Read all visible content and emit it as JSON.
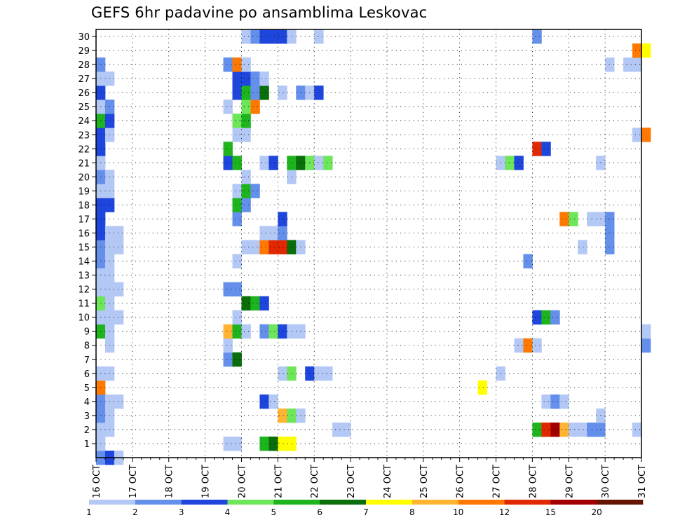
{
  "chart_data": {
    "type": "heatmap",
    "title": "GEFS 6hr padavine po ansamblima Leskovac",
    "xlabel": "",
    "ylabel": "",
    "x_ticks": [
      "16 OCT",
      "17 OCT",
      "18 OCT",
      "19 OCT",
      "20 OCT",
      "21 OCT",
      "22 OCT",
      "23 OCT",
      "24 OCT",
      "25 OCT",
      "26 OCT",
      "27 OCT",
      "28 OCT",
      "29 OCT",
      "30 OCT",
      "31 OCT"
    ],
    "xlim": [
      "16 OCT 00Z",
      "31 OCT 00Z"
    ],
    "time_step_hours": 6,
    "y_ticks": [
      1,
      2,
      3,
      4,
      5,
      6,
      7,
      8,
      9,
      10,
      11,
      12,
      13,
      14,
      15,
      16,
      17,
      18,
      19,
      20,
      21,
      22,
      23,
      24,
      25,
      26,
      27,
      28,
      29,
      30
    ],
    "ylim": [
      0,
      30
    ],
    "grid": true,
    "colorbar": {
      "position": "bottom",
      "labels": [
        "1",
        "2",
        "3",
        "4",
        "5",
        "6",
        "7",
        "8",
        "10",
        "12",
        "15",
        "20"
      ],
      "colors": [
        "#b4c8f5",
        "#6490eb",
        "#1e46dc",
        "#6ee65a",
        "#1eb41e",
        "#0a6e0a",
        "#ffff00",
        "#ffb432",
        "#ff7800",
        "#e12800",
        "#a00000",
        "#641400"
      ]
    },
    "cells_note": "each cell: [ensemble_member, time_step_index (0 = 16 OCT 00Z, 6h steps), precip_class_index into colorbar.colors]",
    "cells": [
      [
        0,
        0,
        1
      ],
      [
        0,
        1,
        2
      ],
      [
        0,
        2,
        0
      ],
      [
        1,
        0,
        0
      ],
      [
        1,
        14,
        0
      ],
      [
        1,
        15,
        0
      ],
      [
        1,
        18,
        4
      ],
      [
        1,
        19,
        5
      ],
      [
        1,
        20,
        6
      ],
      [
        1,
        21,
        6
      ],
      [
        2,
        0,
        0
      ],
      [
        2,
        1,
        0
      ],
      [
        2,
        26,
        0
      ],
      [
        2,
        27,
        0
      ],
      [
        2,
        48,
        4
      ],
      [
        2,
        49,
        9
      ],
      [
        2,
        50,
        10
      ],
      [
        2,
        51,
        7
      ],
      [
        2,
        52,
        0
      ],
      [
        2,
        53,
        0
      ],
      [
        2,
        54,
        1
      ],
      [
        2,
        55,
        1
      ],
      [
        2,
        59,
        0
      ],
      [
        3,
        0,
        1
      ],
      [
        3,
        1,
        0
      ],
      [
        3,
        20,
        7
      ],
      [
        3,
        21,
        3
      ],
      [
        3,
        22,
        0
      ],
      [
        3,
        55,
        0
      ],
      [
        4,
        0,
        1
      ],
      [
        4,
        1,
        0
      ],
      [
        4,
        2,
        0
      ],
      [
        4,
        18,
        2
      ],
      [
        4,
        19,
        0
      ],
      [
        4,
        49,
        0
      ],
      [
        4,
        50,
        1
      ],
      [
        4,
        51,
        0
      ],
      [
        5,
        0,
        8
      ],
      [
        5,
        42,
        6
      ],
      [
        6,
        0,
        0
      ],
      [
        6,
        1,
        0
      ],
      [
        6,
        20,
        0
      ],
      [
        6,
        21,
        3
      ],
      [
        6,
        23,
        2
      ],
      [
        6,
        24,
        0
      ],
      [
        6,
        25,
        0
      ],
      [
        6,
        44,
        0
      ],
      [
        7,
        14,
        1
      ],
      [
        7,
        15,
        5
      ],
      [
        8,
        1,
        0
      ],
      [
        8,
        14,
        0
      ],
      [
        8,
        46,
        0
      ],
      [
        8,
        47,
        8
      ],
      [
        8,
        48,
        0
      ],
      [
        8,
        60,
        1
      ],
      [
        9,
        0,
        4
      ],
      [
        9,
        1,
        0
      ],
      [
        9,
        14,
        7
      ],
      [
        9,
        15,
        4
      ],
      [
        9,
        16,
        0
      ],
      [
        9,
        18,
        1
      ],
      [
        9,
        19,
        3
      ],
      [
        9,
        20,
        2
      ],
      [
        9,
        21,
        0
      ],
      [
        9,
        22,
        0
      ],
      [
        9,
        60,
        0
      ],
      [
        10,
        0,
        0
      ],
      [
        10,
        1,
        0
      ],
      [
        10,
        2,
        0
      ],
      [
        10,
        15,
        0
      ],
      [
        10,
        48,
        2
      ],
      [
        10,
        49,
        4
      ],
      [
        10,
        50,
        1
      ],
      [
        11,
        0,
        3
      ],
      [
        11,
        1,
        0
      ],
      [
        11,
        16,
        5
      ],
      [
        11,
        17,
        4
      ],
      [
        11,
        18,
        2
      ],
      [
        12,
        0,
        0
      ],
      [
        12,
        1,
        0
      ],
      [
        12,
        2,
        0
      ],
      [
        12,
        14,
        1
      ],
      [
        12,
        15,
        1
      ],
      [
        13,
        0,
        0
      ],
      [
        13,
        1,
        0
      ],
      [
        14,
        0,
        1
      ],
      [
        14,
        1,
        0
      ],
      [
        14,
        15,
        0
      ],
      [
        14,
        47,
        1
      ],
      [
        15,
        0,
        1
      ],
      [
        15,
        1,
        0
      ],
      [
        15,
        2,
        0
      ],
      [
        15,
        16,
        0
      ],
      [
        15,
        17,
        0
      ],
      [
        15,
        18,
        8
      ],
      [
        15,
        19,
        9
      ],
      [
        15,
        20,
        9
      ],
      [
        15,
        21,
        5
      ],
      [
        15,
        22,
        0
      ],
      [
        15,
        53,
        0
      ],
      [
        15,
        56,
        1
      ],
      [
        16,
        0,
        2
      ],
      [
        16,
        1,
        0
      ],
      [
        16,
        2,
        0
      ],
      [
        16,
        18,
        0
      ],
      [
        16,
        19,
        0
      ],
      [
        16,
        20,
        1
      ],
      [
        16,
        56,
        1
      ],
      [
        17,
        0,
        2
      ],
      [
        17,
        15,
        1
      ],
      [
        17,
        20,
        2
      ],
      [
        17,
        51,
        8
      ],
      [
        17,
        52,
        3
      ],
      [
        17,
        54,
        0
      ],
      [
        17,
        55,
        0
      ],
      [
        17,
        56,
        1
      ],
      [
        18,
        0,
        2
      ],
      [
        18,
        1,
        2
      ],
      [
        18,
        15,
        4
      ],
      [
        18,
        16,
        1
      ],
      [
        19,
        0,
        0
      ],
      [
        19,
        1,
        0
      ],
      [
        19,
        15,
        0
      ],
      [
        19,
        16,
        4
      ],
      [
        19,
        17,
        1
      ],
      [
        20,
        0,
        1
      ],
      [
        20,
        1,
        0
      ],
      [
        20,
        16,
        0
      ],
      [
        20,
        21,
        0
      ],
      [
        21,
        0,
        0
      ],
      [
        21,
        14,
        2
      ],
      [
        21,
        15,
        4
      ],
      [
        21,
        18,
        0
      ],
      [
        21,
        19,
        2
      ],
      [
        21,
        21,
        4
      ],
      [
        21,
        22,
        5
      ],
      [
        21,
        23,
        3
      ],
      [
        21,
        24,
        0
      ],
      [
        21,
        25,
        3
      ],
      [
        21,
        44,
        0
      ],
      [
        21,
        45,
        3
      ],
      [
        21,
        46,
        2
      ],
      [
        21,
        55,
        0
      ],
      [
        22,
        0,
        2
      ],
      [
        22,
        14,
        4
      ],
      [
        22,
        48,
        9
      ],
      [
        22,
        49,
        2
      ],
      [
        23,
        0,
        2
      ],
      [
        23,
        1,
        0
      ],
      [
        23,
        15,
        0
      ],
      [
        23,
        16,
        0
      ],
      [
        23,
        59,
        0
      ],
      [
        23,
        60,
        8
      ],
      [
        24,
        0,
        4
      ],
      [
        24,
        1,
        2
      ],
      [
        24,
        15,
        3
      ],
      [
        24,
        16,
        4
      ],
      [
        25,
        0,
        0
      ],
      [
        25,
        1,
        1
      ],
      [
        25,
        14,
        0
      ],
      [
        25,
        16,
        3
      ],
      [
        25,
        17,
        8
      ],
      [
        26,
        0,
        2
      ],
      [
        26,
        15,
        2
      ],
      [
        26,
        16,
        4
      ],
      [
        26,
        17,
        1
      ],
      [
        26,
        18,
        5
      ],
      [
        26,
        20,
        0
      ],
      [
        26,
        22,
        1
      ],
      [
        26,
        23,
        0
      ],
      [
        26,
        24,
        2
      ],
      [
        27,
        0,
        0
      ],
      [
        27,
        1,
        0
      ],
      [
        27,
        15,
        2
      ],
      [
        27,
        16,
        2
      ],
      [
        27,
        17,
        1
      ],
      [
        27,
        18,
        0
      ],
      [
        28,
        0,
        1
      ],
      [
        28,
        14,
        1
      ],
      [
        28,
        15,
        8
      ],
      [
        28,
        16,
        0
      ],
      [
        28,
        56,
        0
      ],
      [
        28,
        58,
        0
      ],
      [
        28,
        59,
        0
      ],
      [
        29,
        59,
        8
      ],
      [
        29,
        60,
        6
      ],
      [
        30,
        16,
        0
      ],
      [
        30,
        17,
        1
      ],
      [
        30,
        18,
        2
      ],
      [
        30,
        19,
        2
      ],
      [
        30,
        20,
        2
      ],
      [
        30,
        21,
        0
      ],
      [
        30,
        24,
        0
      ],
      [
        30,
        48,
        1
      ]
    ]
  }
}
